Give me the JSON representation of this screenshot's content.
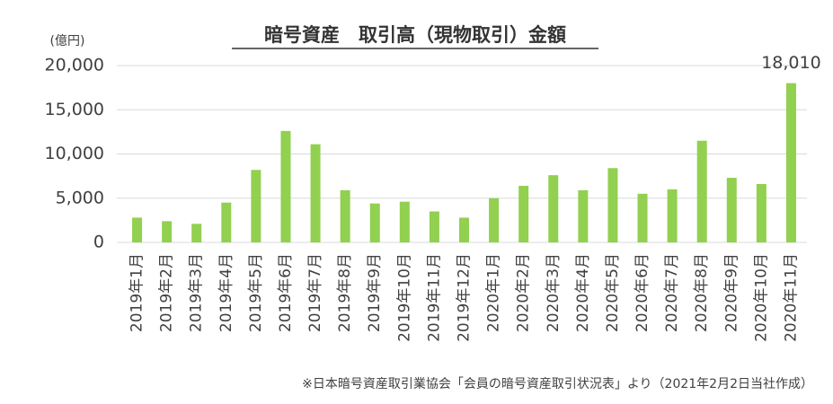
{
  "chart_data": {
    "type": "bar",
    "title": "暗号資産　取引高（現物取引）金額",
    "y_unit": "(億円)",
    "source": "※日本暗号資産取引業協会「会員の暗号資産取引状況表」より（2021年2月2日当社作成）",
    "categories": [
      "2019年1月",
      "2019年2月",
      "2019年3月",
      "2019年4月",
      "2019年5月",
      "2019年6月",
      "2019年7月",
      "2019年8月",
      "2019年9月",
      "2019年10月",
      "2019年11月",
      "2019年12月",
      "2020年1月",
      "2020年2月",
      "2020年3月",
      "2020年4月",
      "2020年5月",
      "2020年6月",
      "2020年7月",
      "2020年8月",
      "2020年9月",
      "2020年10月",
      "2020年11月"
    ],
    "values": [
      2800,
      2400,
      2100,
      4500,
      8200,
      12600,
      11100,
      5900,
      4400,
      4600,
      3500,
      2800,
      5000,
      6400,
      7600,
      5900,
      8400,
      5500,
      6000,
      11500,
      7300,
      6600,
      18010
    ],
    "value_labels": [
      null,
      null,
      null,
      null,
      null,
      null,
      null,
      null,
      null,
      null,
      null,
      null,
      null,
      null,
      null,
      null,
      null,
      null,
      null,
      null,
      null,
      null,
      "18,010"
    ],
    "color": "#92d050",
    "ylim": [
      0,
      20000
    ],
    "yticks": [
      0,
      {
        "value": 5000,
        "label": "5,000"
      },
      {
        "value": 10000,
        "label": "10,000"
      },
      {
        "value": 15000,
        "label": "15,000"
      },
      {
        "value": 20000,
        "label": "20,000"
      }
    ],
    "grid": true
  }
}
